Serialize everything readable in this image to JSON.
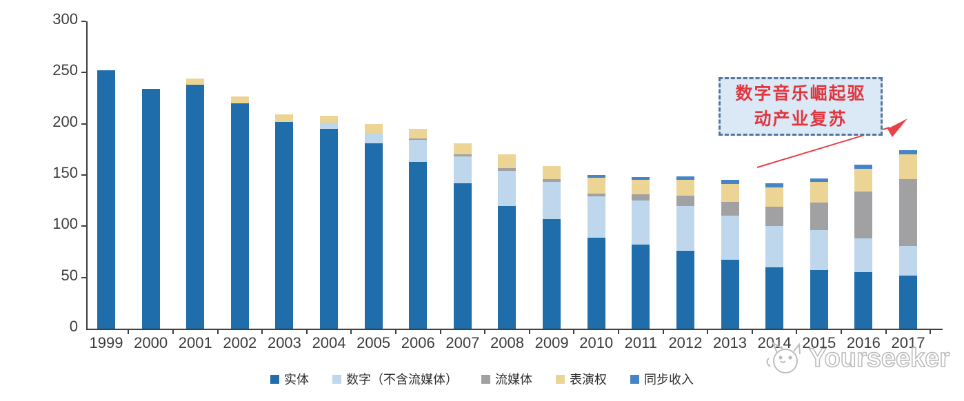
{
  "chart_data": {
    "type": "bar",
    "stacked": true,
    "categories": [
      "1999",
      "2000",
      "2001",
      "2002",
      "2003",
      "2004",
      "2005",
      "2006",
      "2007",
      "2008",
      "2009",
      "2010",
      "2011",
      "2012",
      "2013",
      "2014",
      "2015",
      "2016",
      "2017"
    ],
    "series": [
      {
        "id": "physical",
        "name": "实体",
        "color": "#1f6dab",
        "values": [
          252,
          234,
          238,
          220,
          202,
          195,
          181,
          163,
          142,
          120,
          107,
          89,
          82,
          76,
          67,
          60,
          57,
          55,
          52
        ]
      },
      {
        "id": "digital-excl-streaming",
        "name": "数字（不含流媒体）",
        "color": "#bfd7ed",
        "values": [
          0,
          0,
          0,
          0,
          0,
          6,
          10,
          21,
          26,
          34,
          36,
          40,
          43,
          44,
          43,
          40,
          39,
          33,
          29
        ]
      },
      {
        "id": "streaming",
        "name": "流媒体",
        "color": "#a1a1a3",
        "values": [
          0,
          0,
          0,
          0,
          0,
          0,
          0,
          2,
          2,
          3,
          3,
          3,
          6,
          10,
          14,
          19,
          27,
          46,
          65
        ]
      },
      {
        "id": "performance-rights",
        "name": "表演权",
        "color": "#ebd494",
        "values": [
          0,
          0,
          6,
          7,
          7,
          7,
          9,
          9,
          11,
          13,
          13,
          15,
          14,
          15,
          17,
          19,
          20,
          22,
          24
        ]
      },
      {
        "id": "sync-revenue",
        "name": "同步收入",
        "color": "#4585c6",
        "values": [
          0,
          0,
          0,
          0,
          0,
          0,
          0,
          0,
          0,
          0,
          0,
          3,
          3,
          4,
          4,
          4,
          4,
          4,
          4
        ]
      }
    ],
    "ylim": [
      0,
      300
    ],
    "yticks": [
      0,
      50,
      100,
      150,
      200,
      250,
      300
    ],
    "grid": false,
    "legend_position": "bottom",
    "axis_color": "#3f3f3f"
  },
  "annotation": {
    "line1": "数字音乐崛起驱",
    "line2": "动产业复苏",
    "text": "数字音乐崛起驱动产业复苏",
    "text_color": "#e0363f",
    "box_fill": "#dbe8f6",
    "box_border": "#55759d",
    "arrow_color": "#e8414b"
  },
  "watermark": {
    "text": "Yourseeker"
  }
}
